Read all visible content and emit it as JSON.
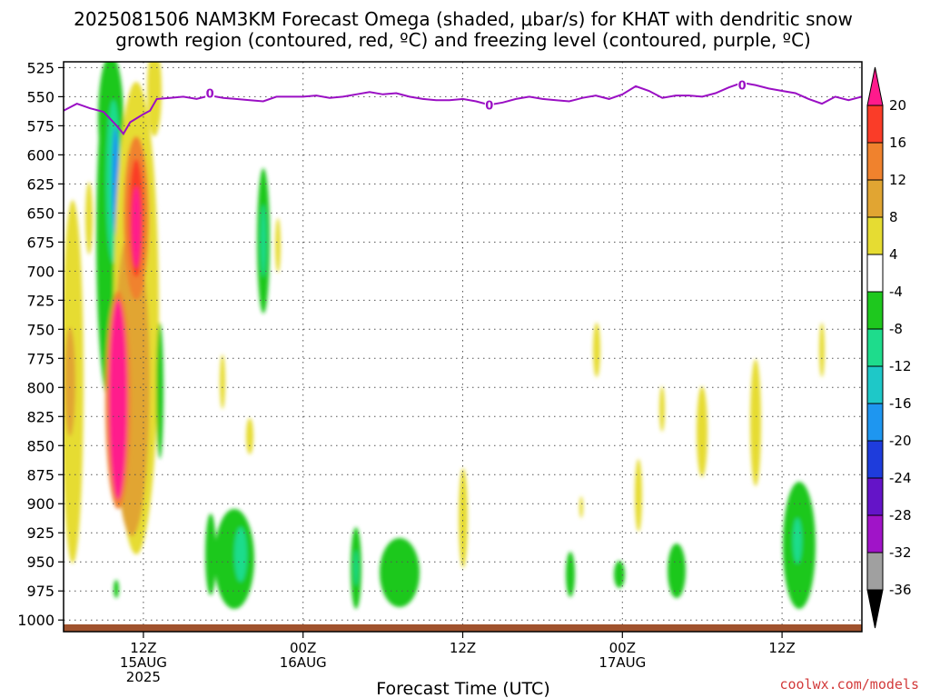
{
  "chart_data": {
    "type": "time-height contour plot",
    "title_line1": "2025081506 NAM3KM Forecast Omega (shaded, μbar/s) for KHAT with dendritic snow",
    "title_line2": "growth region (contoured, red, ºC) and freezing level (contoured, purple, ºC)",
    "xlabel": "Forecast Time (UTC)",
    "credit": "coolwx.com/models",
    "y_axis": {
      "variable": "pressure (hPa)",
      "inverted": true,
      "range": [
        1010,
        520
      ],
      "ticks": [
        525,
        550,
        575,
        600,
        625,
        650,
        675,
        700,
        725,
        750,
        775,
        800,
        825,
        850,
        875,
        900,
        925,
        950,
        975,
        1000
      ]
    },
    "x_axis": {
      "range_hours": [
        0,
        60
      ],
      "ticks": [
        {
          "hour": 6,
          "line1": "12Z",
          "line2": "15AUG",
          "line3": "2025"
        },
        {
          "hour": 18,
          "line1": "00Z",
          "line2": "16AUG",
          "line3": ""
        },
        {
          "hour": 30,
          "line1": "12Z",
          "line2": "",
          "line3": ""
        },
        {
          "hour": 42,
          "line1": "00Z",
          "line2": "17AUG",
          "line3": ""
        },
        {
          "hour": 54,
          "line1": "12Z",
          "line2": "",
          "line3": ""
        }
      ]
    },
    "grid": "dotted",
    "colorbar": {
      "levels": [
        20,
        16,
        12,
        8,
        4,
        -4,
        -8,
        -12,
        -16,
        -20,
        -24,
        -28,
        -32,
        -36
      ],
      "bins": [
        {
          "range": "> 20",
          "color": "#ff1a8c"
        },
        {
          "range": "16 to 20",
          "color": "#fa3c28"
        },
        {
          "range": "12 to 16",
          "color": "#f0822d"
        },
        {
          "range": "8 to 12",
          "color": "#e1a532"
        },
        {
          "range": "4 to 8",
          "color": "#e6dc32"
        },
        {
          "range": "-4 to 4",
          "color": "#ffffff"
        },
        {
          "range": "-8 to -4",
          "color": "#1ec81e"
        },
        {
          "range": "-12 to -8",
          "color": "#1edc8c"
        },
        {
          "range": "-16 to -12",
          "color": "#1ec8c8"
        },
        {
          "range": "-20 to -16",
          "color": "#1e96f0"
        },
        {
          "range": "-24 to -20",
          "color": "#1e3cdc"
        },
        {
          "range": "-28 to -24",
          "color": "#6414c8"
        },
        {
          "range": "-32 to -28",
          "color": "#a014c8"
        },
        {
          "range": "-36 to -32",
          "color": "#a0a0a0"
        },
        {
          "range": "< -36",
          "color": "#000000"
        }
      ]
    },
    "freezing_level": {
      "contour_value": "0",
      "color": "#9a0fc4",
      "points": [
        [
          0,
          562
        ],
        [
          1,
          556
        ],
        [
          2,
          560
        ],
        [
          3,
          563
        ],
        [
          4,
          575
        ],
        [
          4.5,
          582
        ],
        [
          5,
          572
        ],
        [
          6,
          565
        ],
        [
          6.5,
          562
        ],
        [
          7,
          552
        ],
        [
          8,
          551
        ],
        [
          9,
          550
        ],
        [
          10,
          552
        ],
        [
          11,
          549
        ],
        [
          12,
          551
        ],
        [
          14,
          553
        ],
        [
          15,
          554
        ],
        [
          16,
          550
        ],
        [
          17,
          550
        ],
        [
          18,
          550
        ],
        [
          19,
          549
        ],
        [
          20,
          551
        ],
        [
          21,
          550
        ],
        [
          22,
          548
        ],
        [
          23,
          546
        ],
        [
          24,
          548
        ],
        [
          25,
          547
        ],
        [
          26,
          550
        ],
        [
          27,
          552
        ],
        [
          28,
          553
        ],
        [
          29,
          553
        ],
        [
          30,
          552
        ],
        [
          31,
          554
        ],
        [
          32,
          557
        ],
        [
          33,
          555
        ],
        [
          34,
          552
        ],
        [
          35,
          550
        ],
        [
          36,
          552
        ],
        [
          37,
          553
        ],
        [
          38,
          554
        ],
        [
          39,
          551
        ],
        [
          40,
          549
        ],
        [
          41,
          552
        ],
        [
          42,
          548
        ],
        [
          43,
          541
        ],
        [
          44,
          545
        ],
        [
          45,
          551
        ],
        [
          46,
          549
        ],
        [
          47,
          549
        ],
        [
          48,
          550
        ],
        [
          49,
          547
        ],
        [
          50,
          542
        ],
        [
          51,
          538
        ],
        [
          52,
          540
        ],
        [
          53,
          543
        ],
        [
          54,
          545
        ],
        [
          55,
          547
        ],
        [
          56,
          552
        ],
        [
          57,
          556
        ],
        [
          58,
          550
        ],
        [
          59,
          553
        ],
        [
          60,
          550
        ]
      ],
      "labels": [
        [
          11,
          547
        ],
        [
          32,
          557
        ],
        [
          51,
          540
        ]
      ]
    },
    "surface_terrain": {
      "color": "#a0522d",
      "pressure_top": 1007
    }
  }
}
